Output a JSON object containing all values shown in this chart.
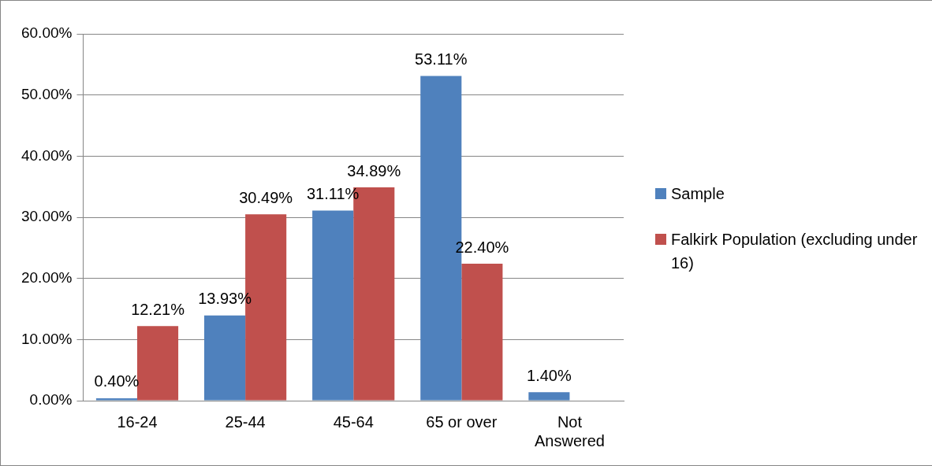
{
  "chart_data": {
    "type": "bar",
    "categories": [
      "16-24",
      "25-44",
      "45-64",
      "65 or over",
      "Not Answered"
    ],
    "series": [
      {
        "name": "Sample",
        "color": "#4f81bd",
        "values": [
          0.4,
          13.93,
          31.11,
          53.11,
          1.4
        ],
        "value_labels": [
          "0.40%",
          "13.93%",
          "31.11%",
          "53.11%",
          "1.40%"
        ]
      },
      {
        "name": "Falkirk Population (excluding under 16)",
        "color": "#c0504d",
        "values": [
          12.21,
          30.49,
          34.89,
          22.4,
          null
        ],
        "value_labels": [
          "12.21%",
          "30.49%",
          "34.89%",
          "22.40%",
          null
        ]
      }
    ],
    "ylim": [
      0,
      60
    ],
    "yticks": [
      {
        "value": 0,
        "label": "0.00%"
      },
      {
        "value": 10,
        "label": "10.00%"
      },
      {
        "value": 20,
        "label": "20.00%"
      },
      {
        "value": 30,
        "label": "30.00%"
      },
      {
        "value": 40,
        "label": "40.00%"
      },
      {
        "value": 50,
        "label": "50.00%"
      },
      {
        "value": 60,
        "label": "60.00%"
      }
    ],
    "grid": "y",
    "legend": "right"
  }
}
